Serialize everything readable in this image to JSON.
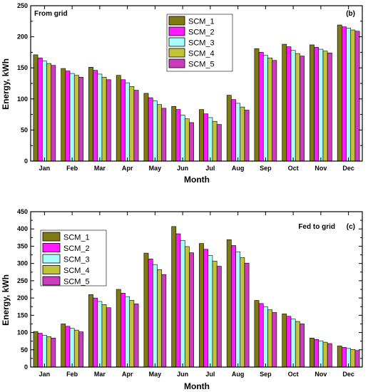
{
  "colors": {
    "SCM_1": "#7f7a12",
    "SCM_2": "#ff1aff",
    "SCM_3": "#a8ffff",
    "SCM_4": "#c3c33a",
    "SCM_5": "#cc3dbd"
  },
  "chart_data": [
    {
      "type": "bar",
      "panel_title": "From grid",
      "panel_letter": "(b)",
      "xlabel": "Month",
      "ylabel": "Energy, kWh",
      "ylim": [
        0,
        250
      ],
      "yticks": [
        0,
        50,
        100,
        150,
        200,
        250
      ],
      "legend_position": "top-center",
      "categories": [
        "Jan",
        "Feb",
        "Mar",
        "Apr",
        "May",
        "Jun",
        "Jul",
        "Aug",
        "Sep",
        "Oct",
        "Nov",
        "Dec"
      ],
      "series": [
        {
          "name": "SCM_1",
          "values": [
            171,
            149,
            151,
            138,
            109,
            88,
            83,
            106,
            181,
            188,
            187,
            219
          ]
        },
        {
          "name": "SCM_2",
          "values": [
            166,
            145,
            146,
            131,
            102,
            83,
            76,
            99,
            175,
            184,
            183,
            216
          ]
        },
        {
          "name": "SCM_3",
          "values": [
            161,
            141,
            140,
            126,
            97,
            74,
            70,
            93,
            170,
            178,
            180,
            214
          ]
        },
        {
          "name": "SCM_4",
          "values": [
            157,
            138,
            135,
            120,
            91,
            68,
            64,
            87,
            166,
            173,
            177,
            211
          ]
        },
        {
          "name": "SCM_5",
          "values": [
            154,
            135,
            131,
            114,
            85,
            62,
            59,
            82,
            162,
            169,
            174,
            209
          ]
        }
      ]
    },
    {
      "type": "bar",
      "panel_title": "Fed to grid",
      "panel_letter": "(c)",
      "xlabel": "Month",
      "ylabel": "Energy, kWh",
      "ylim": [
        0,
        450
      ],
      "yticks": [
        0,
        50,
        100,
        150,
        200,
        250,
        300,
        350,
        400,
        450
      ],
      "legend_position": "top-left",
      "categories": [
        "Jan",
        "Feb",
        "Mar",
        "Apr",
        "May",
        "Jun",
        "Jul",
        "Aug",
        "Sep",
        "Oct",
        "Nov",
        "Dec"
      ],
      "series": [
        {
          "name": "SCM_1",
          "values": [
            103,
            125,
            210,
            225,
            330,
            407,
            358,
            369,
            193,
            154,
            84,
            61
          ]
        },
        {
          "name": "SCM_2",
          "values": [
            98,
            118,
            200,
            214,
            313,
            386,
            341,
            352,
            184,
            147,
            80,
            57
          ]
        },
        {
          "name": "SCM_3",
          "values": [
            92,
            112,
            190,
            204,
            297,
            367,
            323,
            334,
            175,
            139,
            76,
            54
          ]
        },
        {
          "name": "SCM_4",
          "values": [
            88,
            107,
            181,
            193,
            282,
            349,
            307,
            317,
            166,
            132,
            72,
            51
          ]
        },
        {
          "name": "SCM_5",
          "values": [
            84,
            102,
            172,
            183,
            268,
            331,
            292,
            301,
            158,
            125,
            68,
            48
          ]
        }
      ]
    }
  ]
}
